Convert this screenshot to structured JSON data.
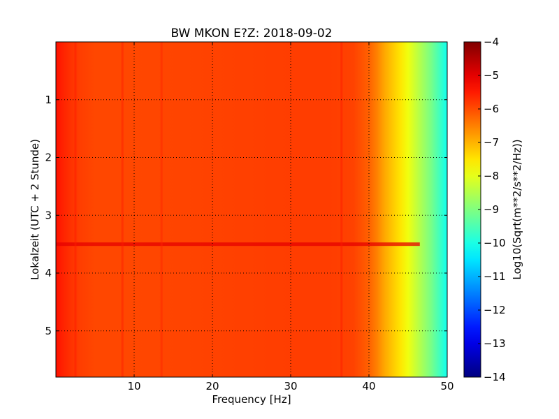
{
  "chart_data": {
    "type": "heatmap",
    "title": "BW MKON E?Z: 2018-09-02",
    "xlabel": "Frequency [Hz]",
    "ylabel": "Lokalzeit (UTC + 2 Stunde)",
    "xlim": [
      0,
      50
    ],
    "ylim": [
      5.8,
      0
    ],
    "x_ticks": [
      10,
      20,
      30,
      40,
      50
    ],
    "x_tick_labels": [
      "10",
      "20",
      "30",
      "40",
      "50"
    ],
    "y_ticks": [
      1,
      2,
      3,
      4,
      5
    ],
    "y_tick_labels": [
      "1",
      "2",
      "3",
      "4",
      "5"
    ],
    "grid": true,
    "colormap": "jet",
    "colorbar": {
      "label": "Log10(Sqrt(m**2/s**2/Hz))",
      "range": [
        -14,
        -4
      ],
      "ticks": [
        -4,
        -5,
        -6,
        -7,
        -8,
        -9,
        -10,
        -11,
        -12,
        -13,
        -14
      ],
      "tick_labels": [
        "−4",
        "−5",
        "−6",
        "−7",
        "−8",
        "−9",
        "−10",
        "−11",
        "−12",
        "−13",
        "−14"
      ]
    },
    "frequency_profile_hz": [
      0,
      0.5,
      1,
      2,
      3,
      5,
      10,
      20,
      30,
      35,
      38,
      40,
      41,
      42,
      43,
      44,
      45,
      46,
      47,
      48,
      49,
      50
    ],
    "frequency_profile_value": [
      -5.4,
      -5.5,
      -5.6,
      -5.75,
      -5.85,
      -5.95,
      -5.95,
      -5.9,
      -5.85,
      -5.85,
      -5.9,
      -6.2,
      -6.5,
      -6.9,
      -7.2,
      -7.5,
      -7.9,
      -8.3,
      -8.7,
      -9.1,
      -9.6,
      -10.1
    ],
    "features": [
      {
        "kind": "horizontal-band",
        "time": 3.5,
        "value": -5.0
      },
      {
        "kind": "vertical-line",
        "frequency_hz": 8.5,
        "value": -5.5
      },
      {
        "kind": "vertical-line",
        "frequency_hz": 13.5,
        "value": -5.6
      },
      {
        "kind": "vertical-line",
        "frequency_hz": 36.5,
        "value": -5.5
      },
      {
        "kind": "vertical-line",
        "frequency_hz": 2.5,
        "value": -5.5
      }
    ]
  }
}
